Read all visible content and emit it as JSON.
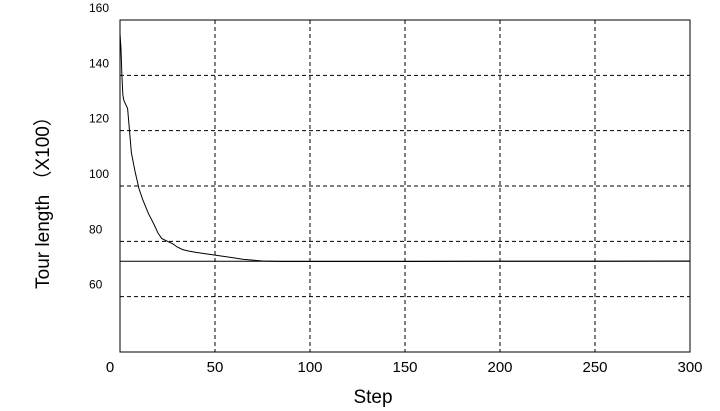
{
  "chart_data": {
    "type": "line",
    "xlabel": "Step",
    "ylabel": "Tour length （X100）",
    "x_ticks": [
      "0",
      "50",
      "100",
      "150",
      "200",
      "250",
      "300"
    ],
    "y_ticks": [
      "60",
      "80",
      "100",
      "120",
      "140",
      "160"
    ],
    "xlim": [
      0,
      300
    ],
    "ylim": [
      40,
      160
    ],
    "grid": "dashed",
    "series": [
      {
        "x": [
          0,
          0.5,
          1,
          1.5,
          2,
          4,
          5,
          6,
          8,
          10,
          12,
          15,
          18,
          20,
          22,
          25,
          28,
          30,
          33,
          36,
          40,
          45,
          50,
          55,
          60,
          65,
          70,
          75,
          80,
          85,
          90,
          100,
          150,
          200,
          250,
          300
        ],
        "y": [
          155,
          150,
          140,
          133,
          131,
          128,
          120,
          112,
          105,
          99,
          95,
          90,
          86,
          83,
          81,
          80,
          79,
          78,
          77,
          76.5,
          76,
          75.5,
          75,
          74.5,
          74,
          73.5,
          73.2,
          72.9,
          72.8,
          72.7,
          72.7,
          72.7,
          72.7,
          72.8,
          72.8,
          72.9
        ]
      },
      {
        "x": [
          0,
          300
        ],
        "y": [
          72.8,
          72.8
        ]
      }
    ]
  }
}
